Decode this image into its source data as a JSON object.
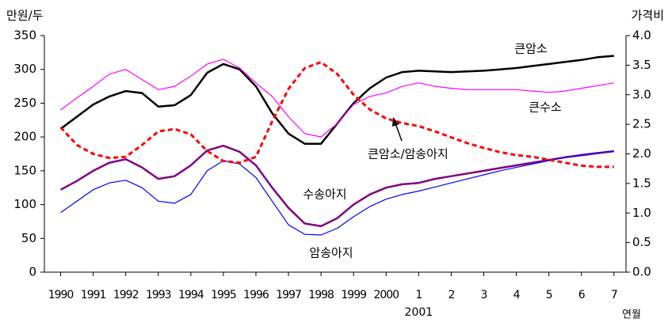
{
  "chart_data": {
    "type": "line",
    "y_label": "만원/두",
    "y2_label": "가격비",
    "x_label": "연월",
    "x_group_label": "2001",
    "x": [
      0,
      0.5,
      1,
      1.5,
      2,
      2.5,
      3,
      3.5,
      4,
      4.5,
      5,
      5.5,
      6,
      6.5,
      7,
      7.5,
      8,
      8.5,
      9,
      9.5,
      10,
      10.5,
      11,
      11.5,
      12,
      12.5,
      13,
      13.5,
      14,
      14.5,
      15,
      15.5,
      16,
      16.5,
      17
    ],
    "xlim": [
      -0.5,
      17.37
    ],
    "xticks": [
      {
        "value": 0,
        "label": "1990"
      },
      {
        "value": 1,
        "label": "1991"
      },
      {
        "value": 2,
        "label": "1992"
      },
      {
        "value": 3,
        "label": "1993"
      },
      {
        "value": 4,
        "label": "1994"
      },
      {
        "value": 5,
        "label": "1995"
      },
      {
        "value": 6,
        "label": "1996"
      },
      {
        "value": 7,
        "label": "1997"
      },
      {
        "value": 8,
        "label": "1998"
      },
      {
        "value": 9,
        "label": "1999"
      },
      {
        "value": 10,
        "label": "2000"
      },
      {
        "value": 11,
        "label": "1"
      },
      {
        "value": 12,
        "label": "2"
      },
      {
        "value": 13,
        "label": "3"
      },
      {
        "value": 14,
        "label": "4"
      },
      {
        "value": 15,
        "label": "5"
      },
      {
        "value": 16,
        "label": "6"
      },
      {
        "value": 17,
        "label": "7"
      }
    ],
    "ylim": [
      0,
      350
    ],
    "yticks": [
      0,
      50,
      100,
      150,
      200,
      250,
      300,
      350
    ],
    "y2lim": [
      0,
      4
    ],
    "y2ticks": [
      {
        "value": 0,
        "label": "0.0"
      },
      0.5,
      {
        "value": 1,
        "label": "1.0"
      },
      1.5,
      {
        "value": 2,
        "label": "2.0"
      },
      2.5,
      {
        "value": 3,
        "label": "3.0"
      },
      3.5,
      {
        "value": 4,
        "label": "4.0"
      }
    ],
    "series": [
      {
        "name": "큰암소",
        "color": "#000000",
        "width": 2.5,
        "dash": "solid",
        "values": [
          212,
          230,
          248,
          260,
          268,
          265,
          245,
          247,
          262,
          295,
          308,
          300,
          275,
          235,
          205,
          190,
          190,
          220,
          250,
          272,
          288,
          296,
          298,
          297,
          296,
          297,
          298,
          300,
          302,
          305,
          308,
          311,
          314,
          318,
          320
        ]
      },
      {
        "name": "큰수소",
        "color": "#ff00ff",
        "width": 1.2,
        "dash": "solid",
        "values": [
          240,
          258,
          275,
          293,
          300,
          285,
          270,
          275,
          290,
          308,
          315,
          302,
          280,
          260,
          230,
          205,
          200,
          220,
          248,
          260,
          265,
          275,
          280,
          275,
          272,
          270,
          270,
          270,
          270,
          268,
          266,
          268,
          272,
          276,
          280
        ]
      },
      {
        "name": "수송아지",
        "color": "#800080",
        "width": 2.5,
        "dash": "solid",
        "values": [
          122,
          135,
          150,
          162,
          167,
          155,
          138,
          142,
          158,
          180,
          187,
          178,
          158,
          125,
          95,
          72,
          68,
          80,
          100,
          115,
          125,
          130,
          132,
          138,
          142,
          146,
          150,
          154,
          158,
          162,
          166,
          170,
          173,
          176,
          179
        ]
      },
      {
        "name": "암송아지",
        "color": "#0000ff",
        "width": 1.2,
        "dash": "solid",
        "values": [
          88,
          105,
          122,
          132,
          136,
          125,
          105,
          102,
          115,
          150,
          165,
          160,
          140,
          105,
          70,
          56,
          55,
          65,
          82,
          97,
          108,
          115,
          120,
          126,
          132,
          138,
          144,
          150,
          155,
          160,
          165,
          170,
          174,
          177,
          179
        ]
      },
      {
        "name": "큰암소/암송아지",
        "color": "#ff0000",
        "width": 3,
        "dash": "dotted",
        "axis": "y2",
        "values": [
          2.45,
          2.15,
          2.0,
          1.93,
          1.95,
          2.15,
          2.38,
          2.42,
          2.33,
          2.05,
          1.88,
          1.85,
          1.95,
          2.55,
          3.1,
          3.45,
          3.55,
          3.35,
          3.0,
          2.75,
          2.6,
          2.52,
          2.47,
          2.38,
          2.28,
          2.18,
          2.1,
          2.03,
          1.98,
          1.95,
          1.9,
          1.85,
          1.8,
          1.78,
          1.78
        ]
      }
    ]
  }
}
